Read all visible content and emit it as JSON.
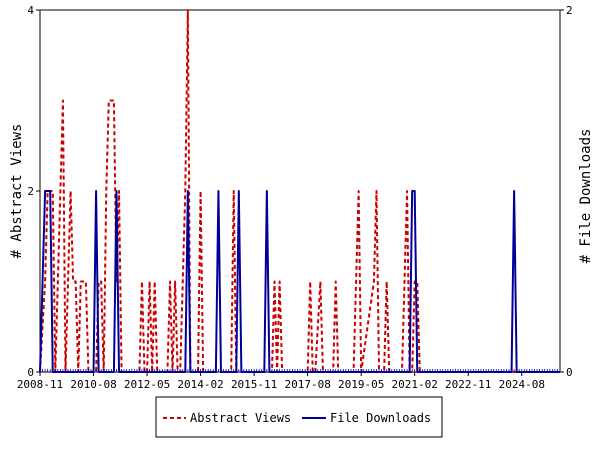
{
  "chart_data": {
    "type": "line",
    "y_left_label": "# Abstract Views",
    "y_right_label": "# File Downloads",
    "y_left_range": [
      0,
      4
    ],
    "y_right_range": [
      0,
      2
    ],
    "y_left_ticks": [
      "0",
      "2",
      "4"
    ],
    "y_right_ticks": [
      "0",
      "2"
    ],
    "x_range": [
      "2008-11",
      "2025-11"
    ],
    "x_ticks": [
      "2008-11",
      "2010-08",
      "2012-05",
      "2014-02",
      "2015-11",
      "2017-08",
      "2019-05",
      "2021-02",
      "2022-11",
      "2024-08"
    ],
    "grid": false,
    "legend_position": "bottom",
    "series": [
      {
        "name": "Abstract Views",
        "axis": "left",
        "color": "#cc0000",
        "style": "dashed",
        "points": [
          [
            "2008-11",
            0
          ],
          [
            "2009-01",
            1
          ],
          [
            "2009-02",
            2
          ],
          [
            "2009-03",
            2
          ],
          [
            "2009-04",
            2
          ],
          [
            "2009-05",
            0
          ],
          [
            "2009-06",
            1
          ],
          [
            "2009-07",
            2
          ],
          [
            "2009-08",
            3
          ],
          [
            "2009-09",
            0
          ],
          [
            "2009-10",
            1
          ],
          [
            "2009-11",
            2
          ],
          [
            "2009-12",
            1
          ],
          [
            "2010-01",
            1
          ],
          [
            "2010-02",
            0
          ],
          [
            "2010-03",
            1
          ],
          [
            "2010-04",
            1
          ],
          [
            "2010-05",
            1
          ],
          [
            "2010-06",
            0
          ],
          [
            "2010-07",
            0
          ],
          [
            "2010-09",
            0
          ],
          [
            "2010-10",
            1
          ],
          [
            "2010-11",
            1
          ],
          [
            "2010-12",
            0
          ],
          [
            "2011-01",
            2
          ],
          [
            "2011-02",
            3
          ],
          [
            "2011-03",
            3
          ],
          [
            "2011-04",
            3
          ],
          [
            "2011-05",
            1
          ],
          [
            "2011-06",
            2
          ],
          [
            "2011-07",
            0
          ],
          [
            "2011-08",
            0
          ],
          [
            "2012-02",
            0
          ],
          [
            "2012-03",
            1
          ],
          [
            "2012-04",
            0
          ],
          [
            "2012-05",
            0
          ],
          [
            "2012-06",
            1
          ],
          [
            "2012-07",
            0
          ],
          [
            "2012-08",
            1
          ],
          [
            "2012-09",
            0
          ],
          [
            "2013-01",
            0
          ],
          [
            "2013-02",
            1
          ],
          [
            "2013-03",
            0
          ],
          [
            "2013-04",
            1
          ],
          [
            "2013-05",
            0
          ],
          [
            "2013-06",
            0
          ],
          [
            "2013-07",
            1
          ],
          [
            "2013-08",
            2
          ],
          [
            "2013-09",
            4
          ],
          [
            "2013-10",
            0
          ],
          [
            "2014-01",
            0
          ],
          [
            "2014-02",
            2
          ],
          [
            "2014-03",
            0
          ],
          [
            "2015-02",
            0
          ],
          [
            "2015-03",
            2
          ],
          [
            "2015-04",
            0
          ],
          [
            "2016-06",
            0
          ],
          [
            "2016-07",
            1
          ],
          [
            "2016-08",
            0
          ],
          [
            "2016-09",
            1
          ],
          [
            "2016-10",
            0
          ],
          [
            "2017-08",
            0
          ],
          [
            "2017-09",
            1
          ],
          [
            "2017-10",
            0
          ],
          [
            "2017-11",
            0
          ],
          [
            "2018-01",
            1
          ],
          [
            "2018-02",
            0
          ],
          [
            "2018-06",
            0
          ],
          [
            "2018-07",
            1
          ],
          [
            "2018-08",
            0
          ],
          [
            "2019-02",
            0
          ],
          [
            "2019-03",
            1
          ],
          [
            "2019-04",
            2
          ],
          [
            "2019-05",
            0
          ],
          [
            "2019-10",
            1
          ],
          [
            "2019-11",
            2
          ],
          [
            "2019-12",
            0
          ],
          [
            "2020-02",
            0
          ],
          [
            "2020-03",
            1
          ],
          [
            "2020-04",
            0
          ],
          [
            "2020-09",
            0
          ],
          [
            "2020-10",
            1
          ],
          [
            "2020-11",
            2
          ],
          [
            "2020-12",
            0
          ],
          [
            "2021-01",
            0
          ],
          [
            "2021-02",
            1
          ],
          [
            "2021-03",
            1
          ],
          [
            "2021-04",
            0
          ],
          [
            "2025-11",
            0
          ]
        ]
      },
      {
        "name": "File Downloads",
        "axis": "right",
        "color": "#000099",
        "style": "solid",
        "points": [
          [
            "2008-11",
            0
          ],
          [
            "2009-01",
            1
          ],
          [
            "2009-02",
            1
          ],
          [
            "2009-03",
            1
          ],
          [
            "2009-04",
            0
          ],
          [
            "2010-08",
            0
          ],
          [
            "2010-09",
            1
          ],
          [
            "2010-10",
            0
          ],
          [
            "2011-04",
            0
          ],
          [
            "2011-05",
            1
          ],
          [
            "2011-06",
            0
          ],
          [
            "2013-08",
            0
          ],
          [
            "2013-09",
            1
          ],
          [
            "2013-10",
            0
          ],
          [
            "2014-08",
            0
          ],
          [
            "2014-09",
            1
          ],
          [
            "2014-10",
            0
          ],
          [
            "2015-04",
            0
          ],
          [
            "2015-05",
            1
          ],
          [
            "2015-06",
            0
          ],
          [
            "2016-03",
            0
          ],
          [
            "2016-04",
            1
          ],
          [
            "2016-05",
            0
          ],
          [
            "2020-12",
            0
          ],
          [
            "2021-01",
            1
          ],
          [
            "2021-02",
            1
          ],
          [
            "2021-03",
            0
          ],
          [
            "2024-04",
            0
          ],
          [
            "2024-05",
            1
          ],
          [
            "2024-06",
            0
          ],
          [
            "2025-11",
            0
          ]
        ]
      }
    ]
  }
}
